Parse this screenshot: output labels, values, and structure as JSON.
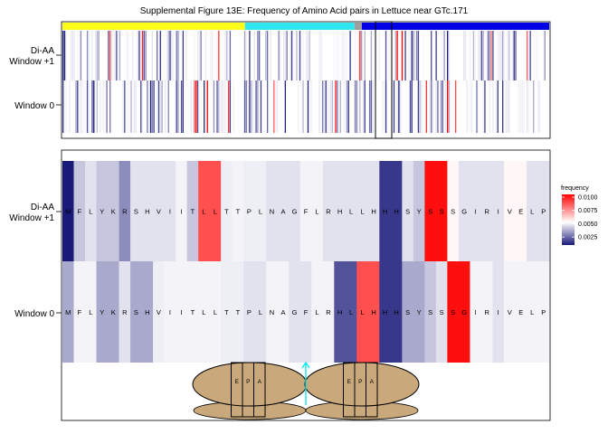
{
  "chart_data": {
    "title": "Supplemental Figure 13E: Frequency of Amino Acid pairs in Lettuce near GTc.171",
    "top_panel": {
      "type": "heatmap",
      "rows": [
        "Di-AA\nWindow +1",
        "Window 0"
      ],
      "region_bar_colors": [
        "#ffff1a",
        "#2ee6f0",
        "#9e9e9e",
        "#0000e6"
      ],
      "region_bar_fractions": [
        0.375,
        0.225,
        0.015,
        0.385
      ]
    },
    "bottom_panel": {
      "type": "heatmap",
      "rows": [
        "Di-AA\nWindow +1",
        "Window 0"
      ],
      "sequence": [
        "M",
        "F",
        "L",
        "Y",
        "K",
        "R",
        "S",
        "H",
        "V",
        "I",
        "I",
        "T",
        "L",
        "L",
        "T",
        "T",
        "P",
        "L",
        "N",
        "A",
        "G",
        "F",
        "L",
        "R",
        "H",
        "L",
        "L",
        "H",
        "H",
        "H",
        "S",
        "Y",
        "S",
        "S",
        "S",
        "G",
        "I",
        "R",
        "I",
        "V",
        "E",
        "L",
        "P"
      ],
      "window_plus1_values": [
        0.0005,
        0.004,
        0.0045,
        0.004,
        0.004,
        0.003,
        0.0045,
        0.0045,
        0.0045,
        0.0045,
        0.0048,
        0.004,
        0.0088,
        0.0088,
        0.0047,
        0.0048,
        0.0047,
        0.0047,
        0.0045,
        0.0045,
        0.0045,
        0.0048,
        0.0048,
        0.0045,
        0.0045,
        0.0045,
        0.0045,
        0.0045,
        0.0015,
        0.0015,
        0.0045,
        0.004,
        0.0102,
        0.0102,
        0.0052,
        0.0045,
        0.0045,
        0.0045,
        0.0045,
        0.0052,
        0.0052,
        0.0045,
        0.0045
      ],
      "window0_values": [
        0.0035,
        0.0048,
        0.0048,
        0.0035,
        0.0035,
        0.0045,
        0.0035,
        0.0035,
        0.0047,
        0.0048,
        0.0048,
        0.0048,
        0.0048,
        0.0048,
        0.0047,
        0.0047,
        0.0045,
        0.0045,
        0.0048,
        0.0048,
        0.0045,
        0.0045,
        0.0048,
        0.0048,
        0.002,
        0.002,
        0.0088,
        0.0088,
        0.0015,
        0.0015,
        0.0035,
        0.0035,
        0.004,
        0.0045,
        0.0102,
        0.0102,
        0.0048,
        0.0048,
        0.0045,
        0.0048,
        0.0048,
        0.0048,
        0.0048
      ]
    },
    "legend": {
      "title": "frequency",
      "ticks": [
        "0.0100",
        "0.0075",
        "0.0050",
        "0.0025"
      ],
      "range": [
        0.001,
        0.0105
      ],
      "colors": {
        "low": "#1a1a7a",
        "mid": "#ffffff",
        "high": "#ff0000"
      },
      "position": "right"
    },
    "ribosomes": [
      {
        "sites": [
          "E",
          "P",
          "A"
        ]
      },
      {
        "sites": [
          "E",
          "P",
          "A"
        ]
      }
    ],
    "arrow_color": "#00e5ee",
    "ribosome_color": "#c9a87b"
  }
}
